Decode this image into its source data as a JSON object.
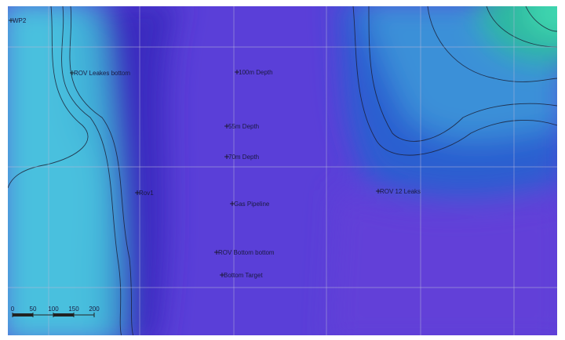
{
  "waypoints": [
    {
      "label": "WP2"
    },
    {
      "label": "ROV Leakes bottom"
    },
    {
      "label": "100m Depth"
    },
    {
      "label": "55m Depth"
    },
    {
      "label": "70m Depth"
    },
    {
      "label": "Rov1"
    },
    {
      "label": "Gas Pipeline"
    },
    {
      "label": "ROV 12 Leaks"
    },
    {
      "label": "ROV Bottom bottom"
    },
    {
      "label": "Bottom Target"
    }
  ],
  "scale_bar": {
    "ticks": [
      0,
      50,
      100,
      150,
      200
    ]
  }
}
